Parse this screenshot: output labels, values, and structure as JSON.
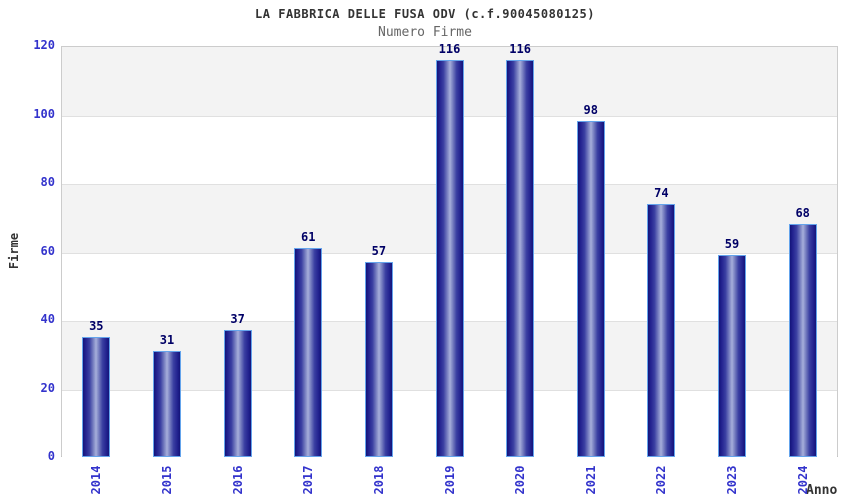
{
  "chart_data": {
    "type": "bar",
    "title": "LA FABBRICA DELLE FUSA ODV (c.f.90045080125)",
    "subtitle": "Numero Firme",
    "categories": [
      "2014",
      "2015",
      "2016",
      "2017",
      "2018",
      "2019",
      "2020",
      "2021",
      "2022",
      "2023",
      "2024"
    ],
    "values": [
      35,
      31,
      37,
      61,
      57,
      116,
      116,
      98,
      74,
      59,
      68
    ],
    "xlabel": "Anno",
    "ylabel": "Firme",
    "ylim": [
      0,
      120
    ],
    "ytick_step": 20,
    "yticks": [
      0,
      20,
      40,
      60,
      80,
      100,
      120
    ],
    "grid": "horizontal-bands-alternating",
    "legend": "none",
    "colors": {
      "bar_edge": "#14147a",
      "bar_center": "#a6aedb",
      "bar_border": "#64a4ec",
      "axis_tick_label": "#3333cc",
      "value_label": "#000066",
      "title": "#333333",
      "subtitle": "#666666",
      "band_gray": "#f3f3f3",
      "band_white": "#ffffff",
      "gridline": "#e0e0e0",
      "plot_border": "#cccccc"
    }
  }
}
